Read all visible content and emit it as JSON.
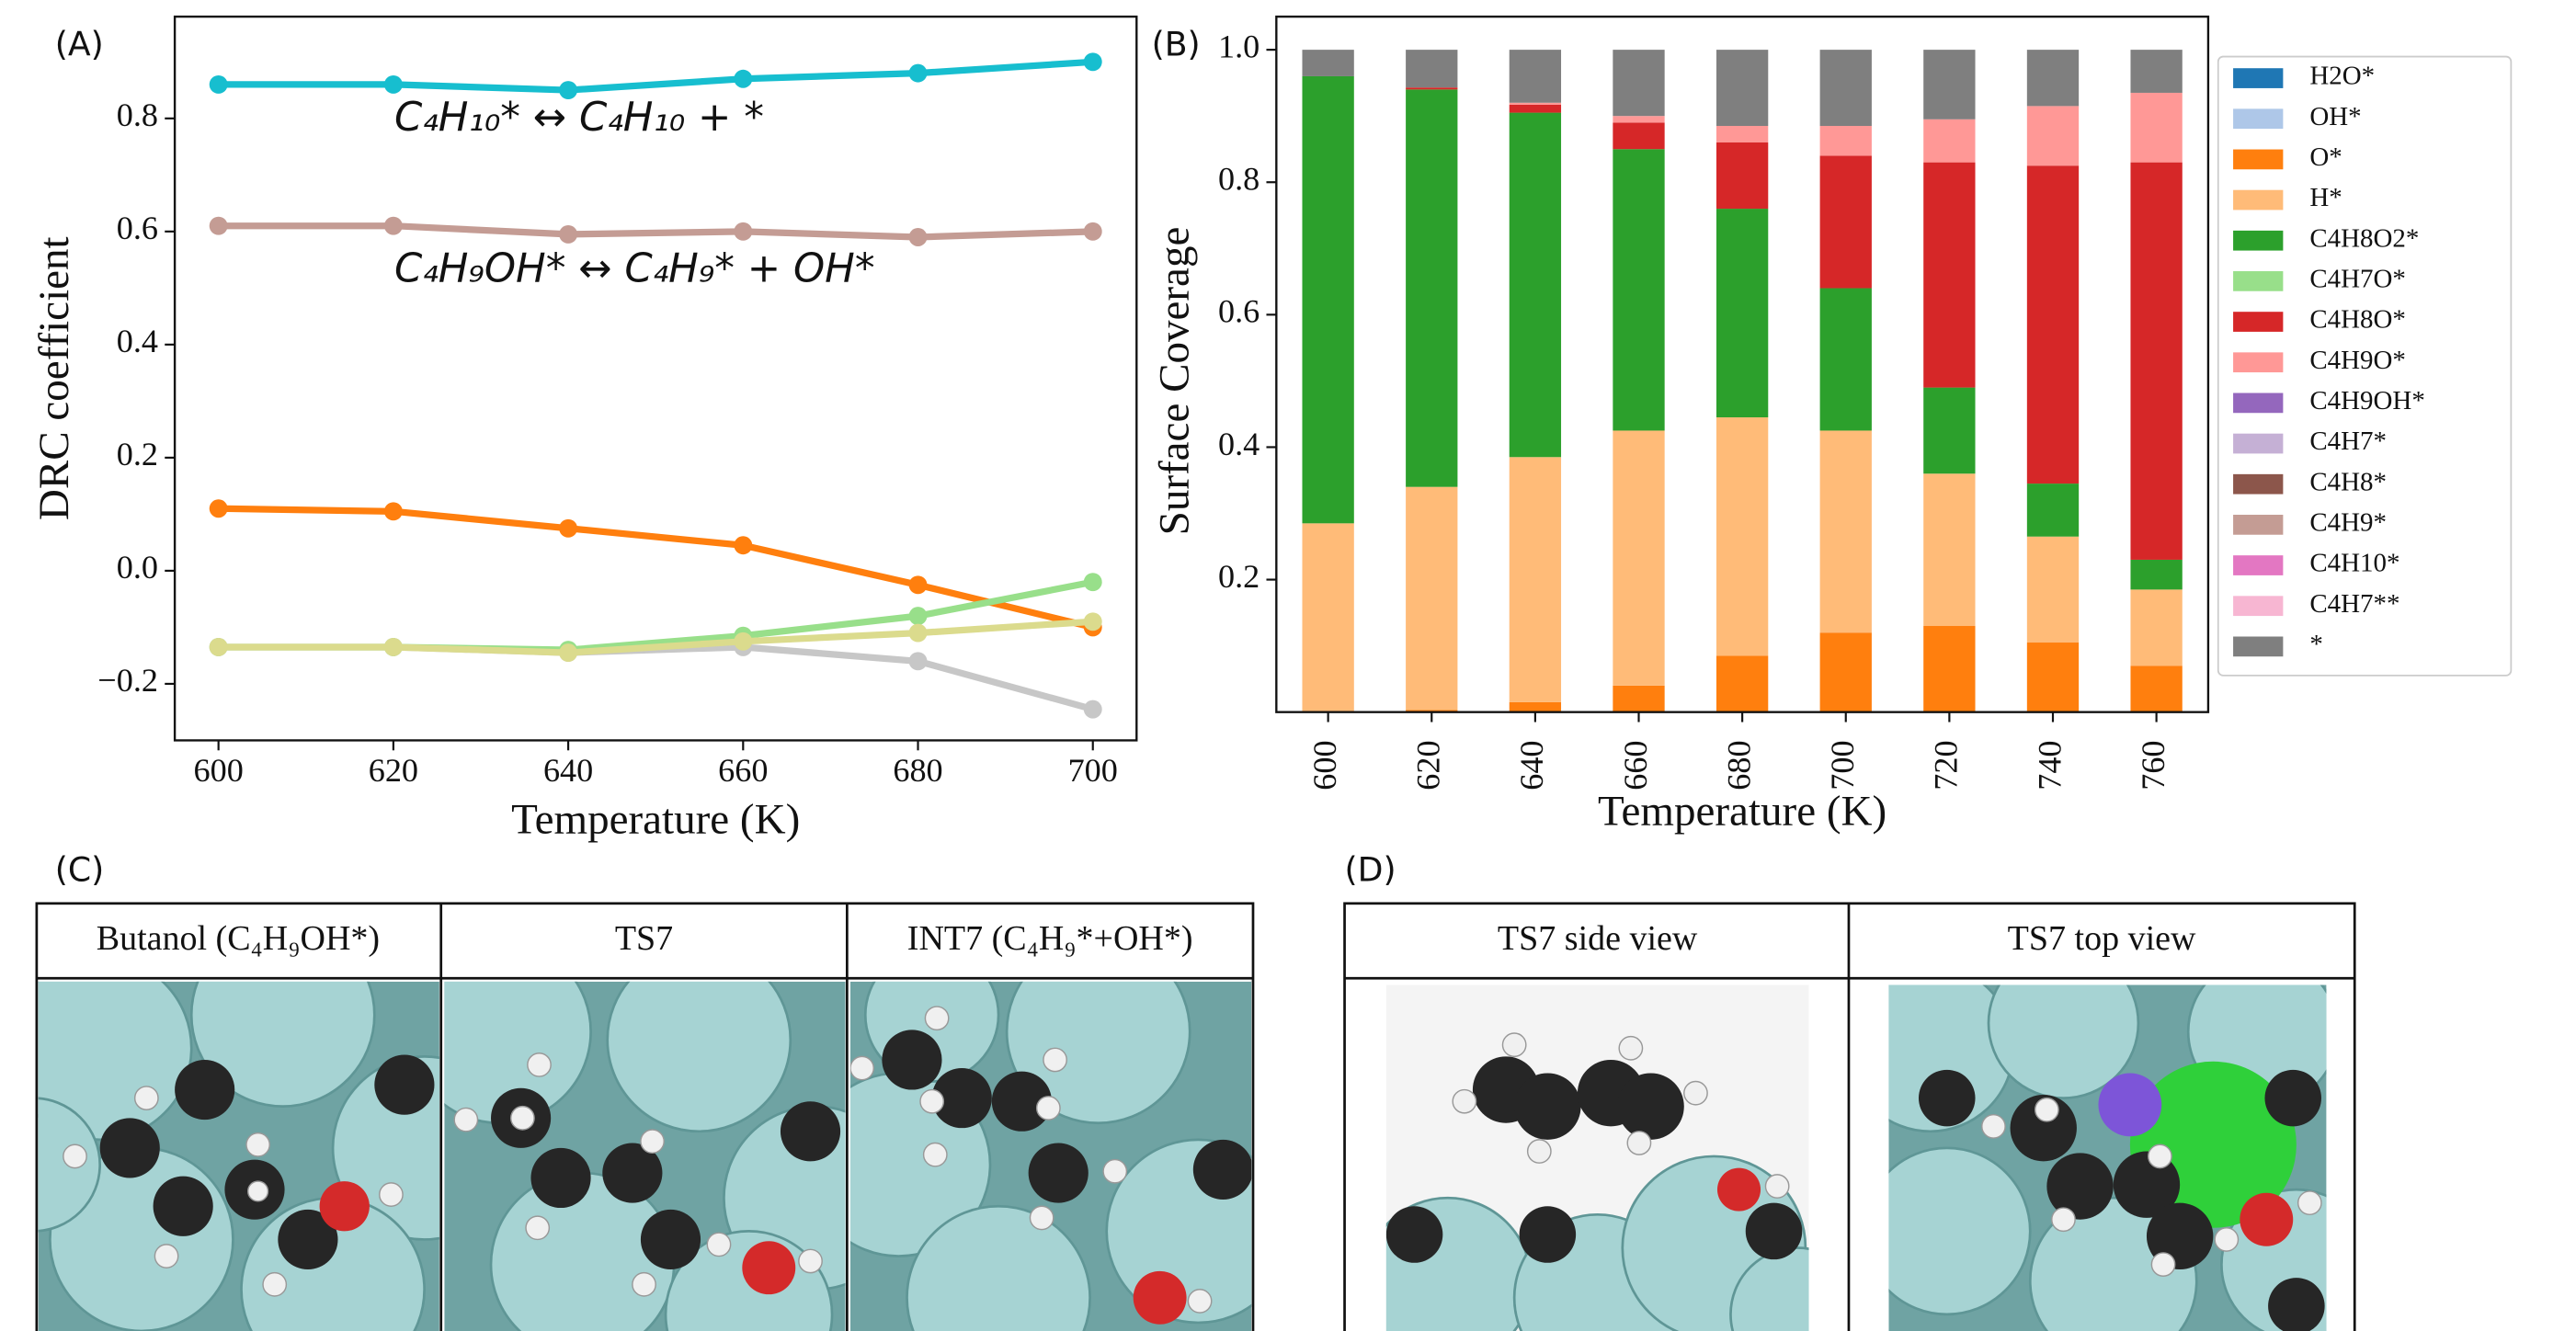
{
  "panel_labels": [
    "(A)",
    "(B)",
    "(C)",
    "(D)"
  ],
  "chart_data": [
    {
      "type": "line",
      "xlabel": "Temperature (K)",
      "ylabel": "DRC coefficient",
      "x": [
        600,
        620,
        640,
        660,
        680,
        700
      ],
      "xlim": [
        595,
        705
      ],
      "xticks": [
        600,
        620,
        640,
        660,
        680,
        700
      ],
      "ylim": [
        -0.3,
        0.98
      ],
      "yticks": [
        {
          "value": -0.2,
          "label": "−0.2"
        },
        {
          "value": 0,
          "label": "0.0"
        },
        0.2,
        0.4,
        0.6,
        0.8
      ],
      "grid": false,
      "annotations": [
        "C₄H₁₀* ↔ C₄H₁₀ + *",
        "C₄H₉OH* ↔ C₄H₉* + OH*"
      ],
      "series": [
        {
          "color": "#17becf",
          "values": [
            0.86,
            0.86,
            0.85,
            0.87,
            0.88,
            0.9
          ]
        },
        {
          "color": "#c49c94",
          "values": [
            0.61,
            0.61,
            0.595,
            0.6,
            0.59,
            0.6
          ]
        },
        {
          "color": "#ff7f0e",
          "values": [
            0.11,
            0.105,
            0.075,
            0.045,
            -0.025,
            -0.1
          ]
        },
        {
          "color": "#c7c7c7",
          "values": [
            -0.135,
            -0.135,
            -0.145,
            -0.135,
            -0.16,
            -0.245
          ]
        },
        {
          "color": "#98df8a",
          "values": [
            -0.135,
            -0.135,
            -0.14,
            -0.115,
            -0.08,
            -0.02
          ]
        },
        {
          "color": "#dbdb8d",
          "values": [
            -0.135,
            -0.135,
            -0.145,
            -0.125,
            -0.11,
            -0.09
          ]
        }
      ]
    },
    {
      "type": "bar",
      "stacked": true,
      "xlabel": "Temperature (K)",
      "ylabel": "Surface Coverage",
      "legend": "outside-right",
      "categories": [
        "600",
        "620",
        "640",
        "660",
        "680",
        "700",
        "720",
        "740",
        "760"
      ],
      "ylim": [
        0,
        1.05
      ],
      "yticks": [
        0.2,
        0.4,
        0.6,
        0.8,
        {
          "value": 1,
          "label": "1.0"
        }
      ],
      "grid": false,
      "series": [
        {
          "name": "H2O*",
          "color": "#1f77b4",
          "values": [
            0,
            0,
            0,
            0,
            0,
            0,
            0,
            0,
            0
          ]
        },
        {
          "name": "OH*",
          "color": "#aec7e8",
          "values": [
            0,
            0,
            0,
            0,
            0,
            0,
            0,
            0,
            0
          ]
        },
        {
          "name": "O*",
          "color": "#ff7f0e",
          "values": [
            0,
            0.003,
            0.015,
            0.04,
            0.085,
            0.12,
            0.13,
            0.105,
            0.07
          ]
        },
        {
          "name": "H*",
          "color": "#ffbb78",
          "values": [
            0.285,
            0.337,
            0.37,
            0.385,
            0.36,
            0.305,
            0.23,
            0.16,
            0.115
          ]
        },
        {
          "name": "C4H8O2*",
          "color": "#2ca02c",
          "values": [
            0.675,
            0.6,
            0.52,
            0.425,
            0.315,
            0.215,
            0.13,
            0.08,
            0.045
          ]
        },
        {
          "name": "C4H7O*",
          "color": "#98df8a",
          "values": [
            0,
            0,
            0,
            0,
            0,
            0,
            0,
            0,
            0
          ]
        },
        {
          "name": "C4H8O*",
          "color": "#d62728",
          "values": [
            0,
            0.003,
            0.012,
            0.04,
            0.1,
            0.2,
            0.34,
            0.48,
            0.6
          ]
        },
        {
          "name": "C4H9O*",
          "color": "#ff9896",
          "values": [
            0,
            0,
            0.003,
            0.01,
            0.025,
            0.045,
            0.065,
            0.09,
            0.105
          ]
        },
        {
          "name": "C4H9OH*",
          "color": "#9467bd",
          "values": [
            0,
            0,
            0,
            0,
            0,
            0,
            0,
            0,
            0
          ]
        },
        {
          "name": "C4H7*",
          "color": "#c5b0d5",
          "values": [
            0,
            0,
            0,
            0,
            0,
            0,
            0,
            0,
            0
          ]
        },
        {
          "name": "C4H8*",
          "color": "#8c564b",
          "values": [
            0,
            0,
            0,
            0,
            0,
            0,
            0,
            0,
            0
          ]
        },
        {
          "name": "C4H9*",
          "color": "#c49c94",
          "values": [
            0,
            0,
            0,
            0,
            0,
            0,
            0,
            0,
            0
          ]
        },
        {
          "name": "C4H10*",
          "color": "#e377c2",
          "values": [
            0,
            0,
            0,
            0,
            0,
            0,
            0,
            0,
            0
          ]
        },
        {
          "name": "C4H7**",
          "color": "#f7b6d2",
          "values": [
            0,
            0,
            0,
            0,
            0,
            0,
            0,
            0,
            0
          ]
        },
        {
          "name": "*",
          "color": "#7f7f7f",
          "values": [
            0.04,
            0.057,
            0.08,
            0.1,
            0.115,
            0.115,
            0.105,
            0.085,
            0.065
          ]
        }
      ]
    }
  ],
  "table_c": {
    "headers": [
      "Butanol (C₄H₉OH*)",
      "TS7",
      "INT7 (C₄H₉*+OH*)"
    ]
  },
  "table_d": {
    "headers": [
      "TS7 side view",
      "TS7 top view"
    ]
  }
}
